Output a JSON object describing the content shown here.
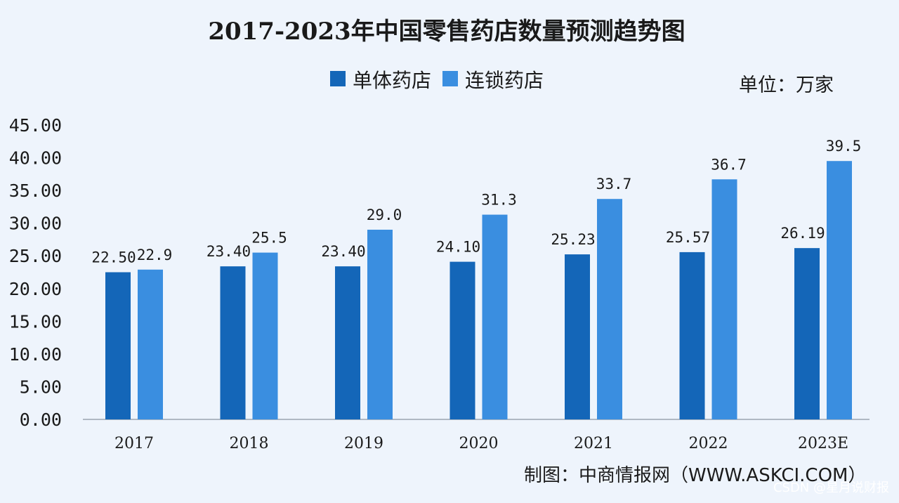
{
  "chart_data": {
    "type": "bar",
    "title": "2017-2023年中国零售药店数量预测趋势图",
    "unit": "单位：万家",
    "categories": [
      "2017",
      "2018",
      "2019",
      "2020",
      "2021",
      "2022",
      "2023E"
    ],
    "series": [
      {
        "name": "单体药店",
        "color": "#1466b8",
        "values": [
          22.5,
          23.4,
          23.4,
          24.1,
          25.23,
          25.57,
          26.19
        ],
        "labels": [
          "22.50",
          "23.40",
          "23.40",
          "24.10",
          "25.23",
          "25.57",
          "26.19"
        ]
      },
      {
        "name": "连锁药店",
        "color": "#3a8ee0",
        "values": [
          22.9,
          25.5,
          29.0,
          31.3,
          33.7,
          36.7,
          39.5
        ],
        "labels": [
          "22.9",
          "25.5",
          "29.0",
          "31.3",
          "33.7",
          "36.7",
          "39.5"
        ]
      }
    ],
    "ylim": [
      0,
      45
    ],
    "yticks": [
      "0.00",
      "5.00",
      "10.00",
      "15.00",
      "20.00",
      "25.00",
      "30.00",
      "35.00",
      "40.00",
      "45.00"
    ],
    "ytick_values": [
      0,
      5,
      10,
      15,
      20,
      25,
      30,
      35,
      40,
      45
    ],
    "legend_position": "top",
    "grid": false
  },
  "source": "制图：中商情报网（WWW.ASKCI.COM）",
  "credit": "CSDN @星月说财报"
}
